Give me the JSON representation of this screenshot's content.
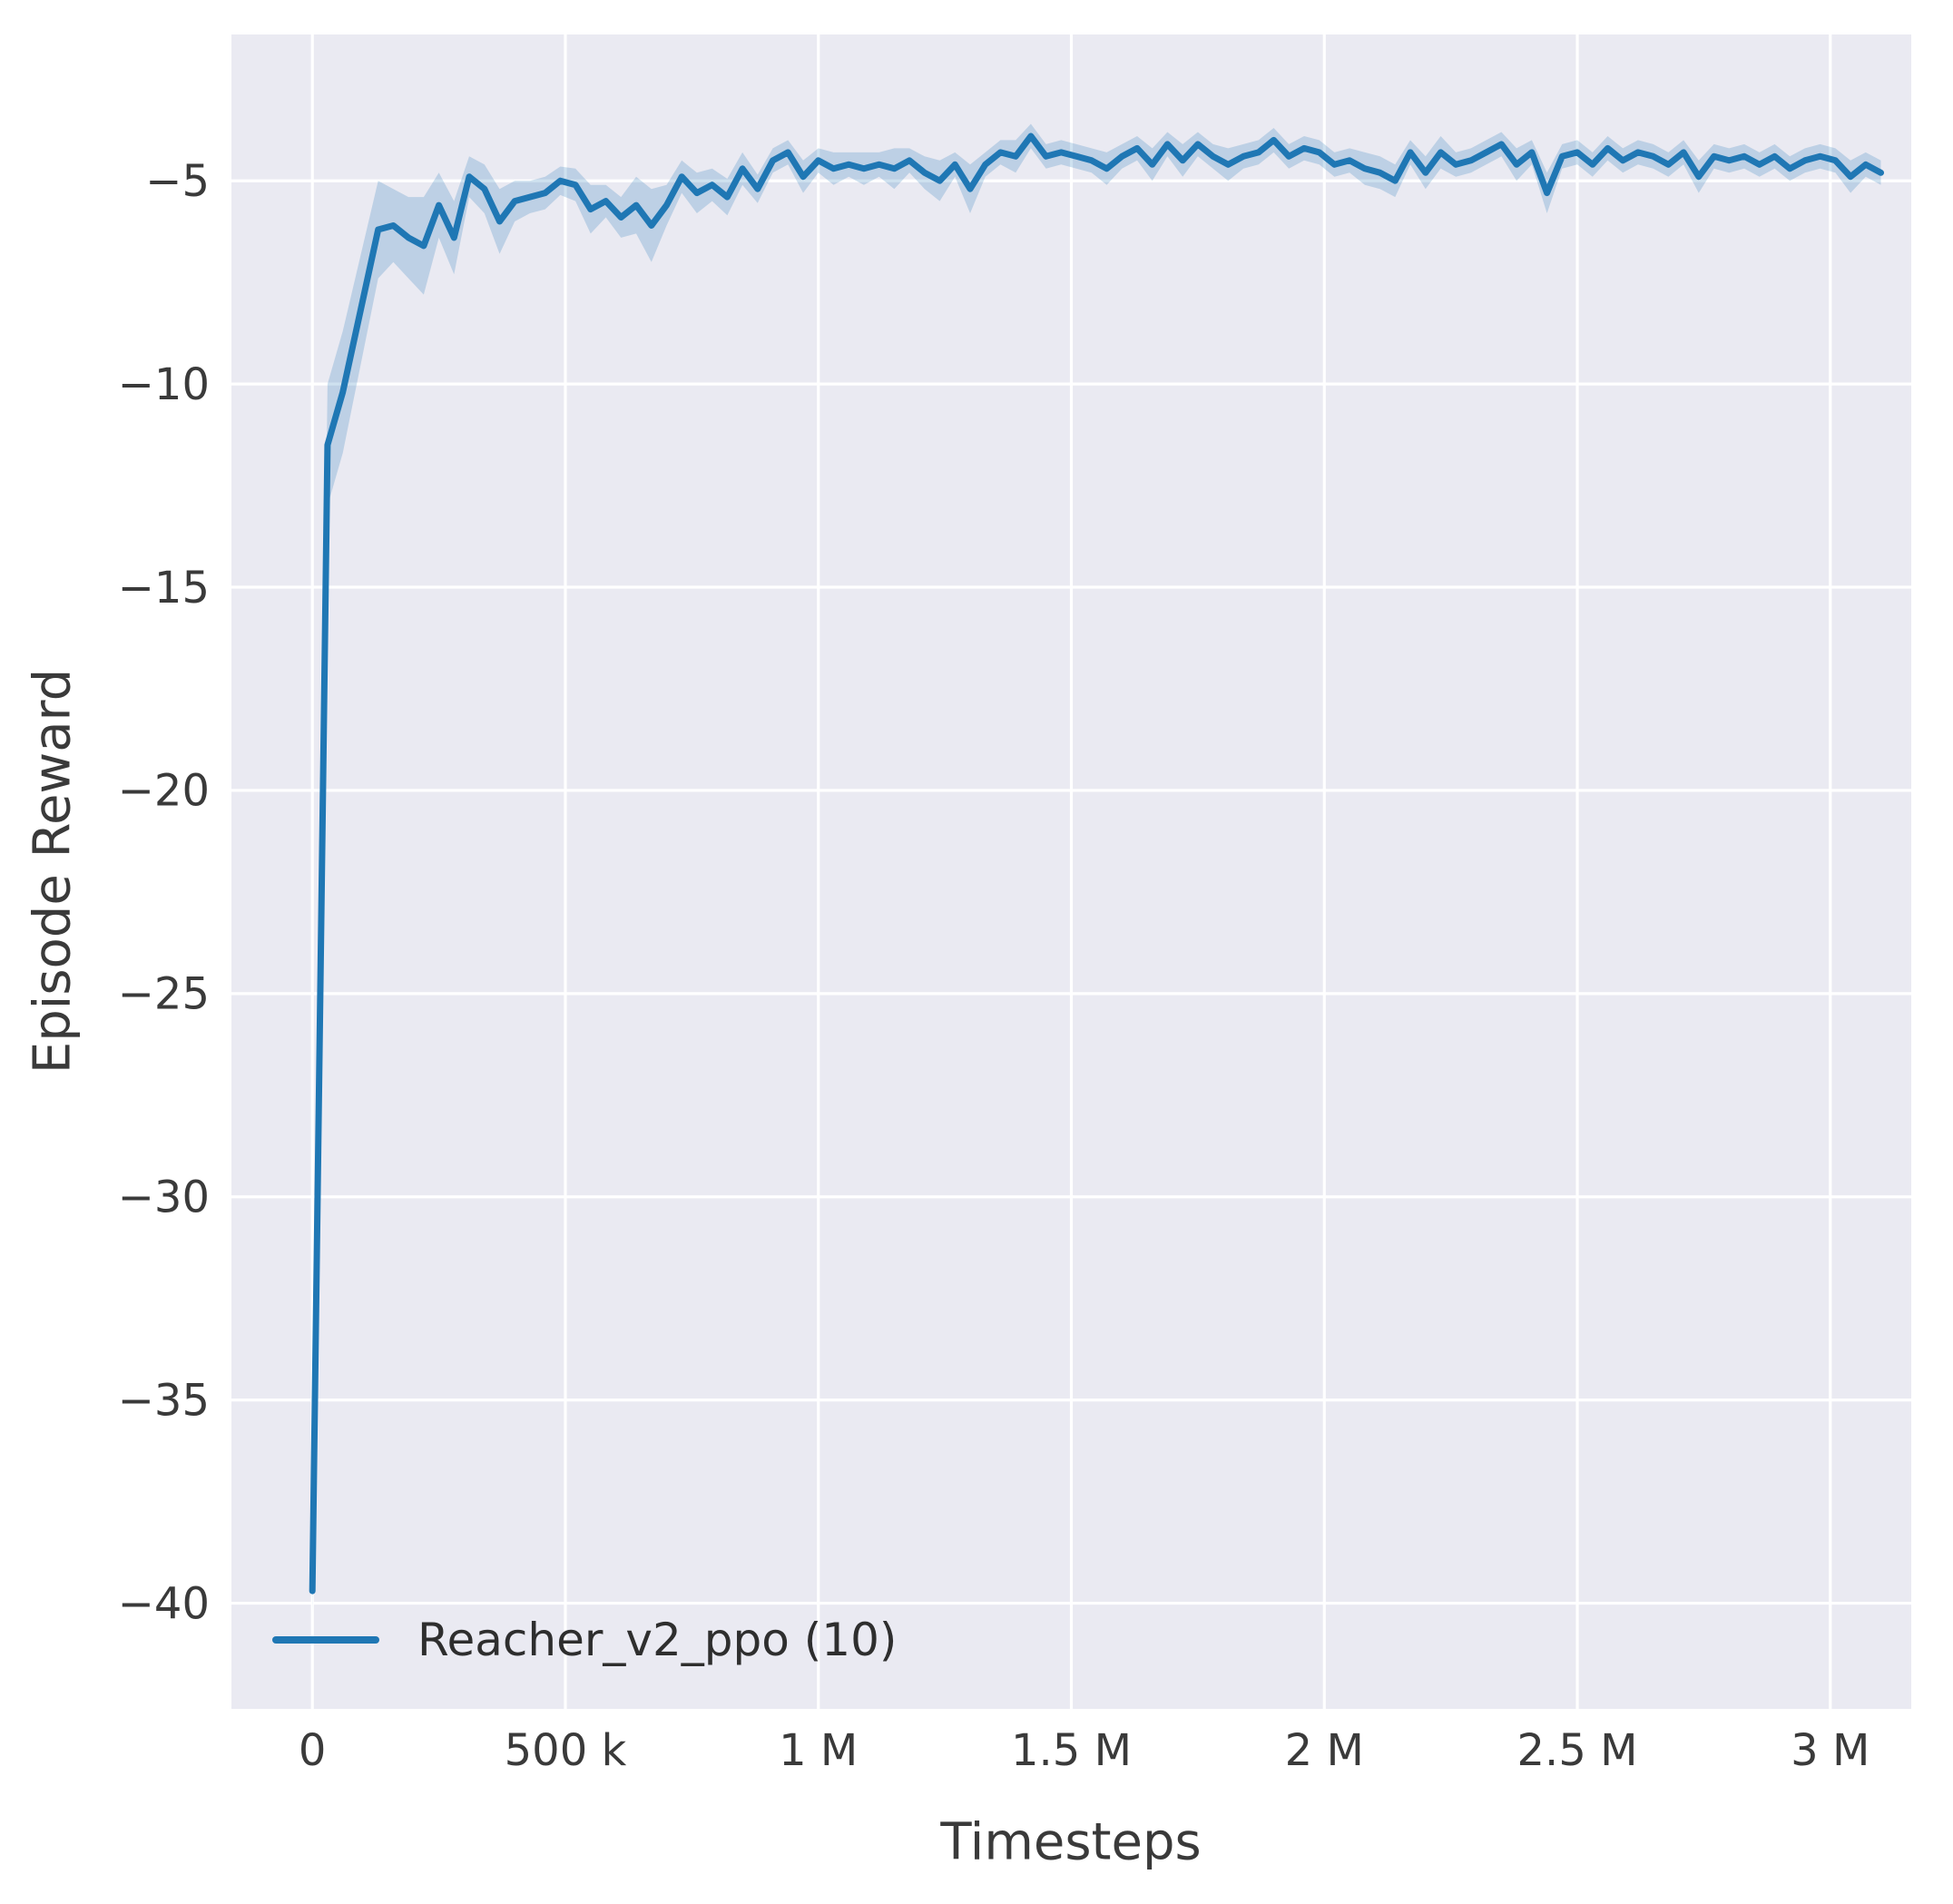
{
  "chart_data": {
    "type": "line",
    "title": "",
    "xlabel": "Timesteps",
    "ylabel": "Episode Reward",
    "legend": [
      "Reacher_v2_ppo (10)"
    ],
    "legend_position": "lower left",
    "grid": true,
    "xlim": [
      -160000,
      3160000
    ],
    "ylim": [
      -42.6,
      -1.4
    ],
    "xticks": {
      "values": [
        0,
        500000,
        1000000,
        1500000,
        2000000,
        2500000,
        3000000
      ],
      "labels": [
        "0",
        "500 k",
        "1 M",
        "1.5 M",
        "2 M",
        "2.5 M",
        "3 M"
      ]
    },
    "yticks": {
      "values": [
        -5,
        -10,
        -15,
        -20,
        -25,
        -30,
        -35,
        -40
      ],
      "labels": [
        "−5",
        "−10",
        "−15",
        "−20",
        "−25",
        "−30",
        "−35",
        "−40"
      ]
    },
    "colors": {
      "plot_bg": "#eaeaf2",
      "grid": "#ffffff",
      "tick_text": "#3a3a3a",
      "label_text": "#3a3a3a",
      "line": "#1f77b4",
      "band": "#1f77b4"
    },
    "series": [
      {
        "name": "Reacher_v2_ppo (10)",
        "color": "#1f77b4",
        "band_opacity": 0.22,
        "x": [
          0,
          30000,
          60000,
          130000,
          160000,
          190000,
          220000,
          250000,
          280000,
          310000,
          340000,
          370000,
          400000,
          430000,
          460000,
          490000,
          520000,
          550000,
          580000,
          610000,
          640000,
          670000,
          700000,
          730000,
          760000,
          790000,
          820000,
          850000,
          880000,
          910000,
          940000,
          970000,
          1000000,
          1030000,
          1060000,
          1090000,
          1120000,
          1150000,
          1180000,
          1210000,
          1240000,
          1270000,
          1300000,
          1330000,
          1360000,
          1390000,
          1420000,
          1450000,
          1480000,
          1510000,
          1540000,
          1570000,
          1600000,
          1630000,
          1660000,
          1690000,
          1720000,
          1750000,
          1780000,
          1810000,
          1840000,
          1870000,
          1900000,
          1930000,
          1960000,
          1990000,
          2020000,
          2050000,
          2080000,
          2110000,
          2140000,
          2170000,
          2200000,
          2230000,
          2260000,
          2290000,
          2320000,
          2350000,
          2380000,
          2410000,
          2440000,
          2470000,
          2500000,
          2530000,
          2560000,
          2590000,
          2620000,
          2650000,
          2680000,
          2710000,
          2740000,
          2770000,
          2800000,
          2830000,
          2860000,
          2890000,
          2920000,
          2950000,
          2980000,
          3010000,
          3040000,
          3070000,
          3100000
        ],
        "y": [
          -39.7,
          -11.5,
          -10.2,
          -6.2,
          -6.1,
          -6.4,
          -6.6,
          -5.6,
          -6.4,
          -4.9,
          -5.2,
          -6.0,
          -5.5,
          -5.4,
          -5.3,
          -5.0,
          -5.1,
          -5.7,
          -5.5,
          -5.9,
          -5.6,
          -6.1,
          -5.6,
          -4.9,
          -5.3,
          -5.1,
          -5.4,
          -4.7,
          -5.2,
          -4.5,
          -4.3,
          -4.9,
          -4.5,
          -4.7,
          -4.6,
          -4.7,
          -4.6,
          -4.7,
          -4.5,
          -4.8,
          -5.0,
          -4.6,
          -5.2,
          -4.6,
          -4.3,
          -4.4,
          -3.9,
          -4.4,
          -4.3,
          -4.4,
          -4.5,
          -4.7,
          -4.4,
          -4.2,
          -4.6,
          -4.1,
          -4.5,
          -4.1,
          -4.4,
          -4.6,
          -4.4,
          -4.3,
          -4.0,
          -4.4,
          -4.2,
          -4.3,
          -4.6,
          -4.5,
          -4.7,
          -4.8,
          -5.0,
          -4.3,
          -4.8,
          -4.3,
          -4.6,
          -4.5,
          -4.3,
          -4.1,
          -4.6,
          -4.3,
          -5.3,
          -4.4,
          -4.3,
          -4.6,
          -4.2,
          -4.5,
          -4.3,
          -4.4,
          -4.6,
          -4.3,
          -4.9,
          -4.4,
          -4.5,
          -4.4,
          -4.6,
          -4.4,
          -4.7,
          -4.5,
          -4.4,
          -4.5,
          -4.9,
          -4.6,
          -4.8
        ],
        "band_halfwidth": [
          0.6,
          1.5,
          1.5,
          1.2,
          0.9,
          1.0,
          1.2,
          0.8,
          0.9,
          0.5,
          0.6,
          0.8,
          0.5,
          0.4,
          0.4,
          0.35,
          0.4,
          0.6,
          0.4,
          0.5,
          0.7,
          0.9,
          0.5,
          0.4,
          0.5,
          0.4,
          0.45,
          0.4,
          0.35,
          0.3,
          0.3,
          0.4,
          0.3,
          0.4,
          0.3,
          0.4,
          0.3,
          0.5,
          0.3,
          0.4,
          0.5,
          0.3,
          0.6,
          0.3,
          0.3,
          0.4,
          0.3,
          0.3,
          0.3,
          0.3,
          0.3,
          0.4,
          0.3,
          0.3,
          0.4,
          0.3,
          0.4,
          0.3,
          0.3,
          0.4,
          0.3,
          0.3,
          0.3,
          0.3,
          0.3,
          0.3,
          0.3,
          0.3,
          0.4,
          0.4,
          0.4,
          0.3,
          0.4,
          0.4,
          0.3,
          0.3,
          0.3,
          0.3,
          0.4,
          0.3,
          0.5,
          0.3,
          0.3,
          0.3,
          0.3,
          0.3,
          0.3,
          0.3,
          0.3,
          0.3,
          0.4,
          0.3,
          0.3,
          0.3,
          0.3,
          0.3,
          0.3,
          0.3,
          0.3,
          0.3,
          0.4,
          0.3,
          0.3
        ]
      }
    ]
  }
}
